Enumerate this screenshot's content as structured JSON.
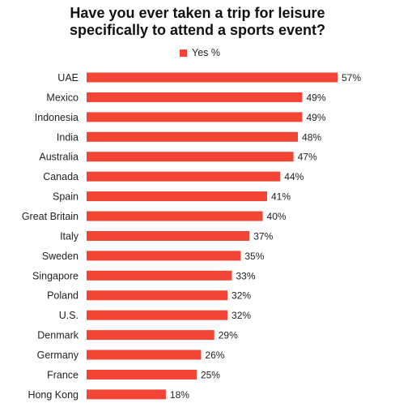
{
  "chart_data": {
    "type": "bar",
    "orientation": "horizontal",
    "title_lines": [
      "Have you ever taken a trip for leisure",
      "specifically to attend a sports event?"
    ],
    "categories": [
      "UAE",
      "Mexico",
      "Indonesia",
      "India",
      "Australia",
      "Canada",
      "Spain",
      "Great Britain",
      "Italy",
      "Sweden",
      "Singapore",
      "Poland",
      "U.S.",
      "Denmark",
      "Germany",
      "France",
      "Hong Kong"
    ],
    "series": [
      {
        "name": "Yes %",
        "values": [
          57,
          49,
          49,
          48,
          47,
          44,
          41,
          40,
          37,
          35,
          33,
          32,
          32,
          29,
          26,
          25,
          18
        ],
        "labels": [
          "57%",
          "49%",
          "49%",
          "48%",
          "47%",
          "44%",
          "41%",
          "40%",
          "37%",
          "35%",
          "33%",
          "32%",
          "32%",
          "29%",
          "26%",
          "25%",
          "18%"
        ]
      }
    ],
    "xlim": [
      0,
      57
    ],
    "grid": false,
    "legend_position": "top-center",
    "colors": {
      "bar": "#f24536"
    }
  }
}
